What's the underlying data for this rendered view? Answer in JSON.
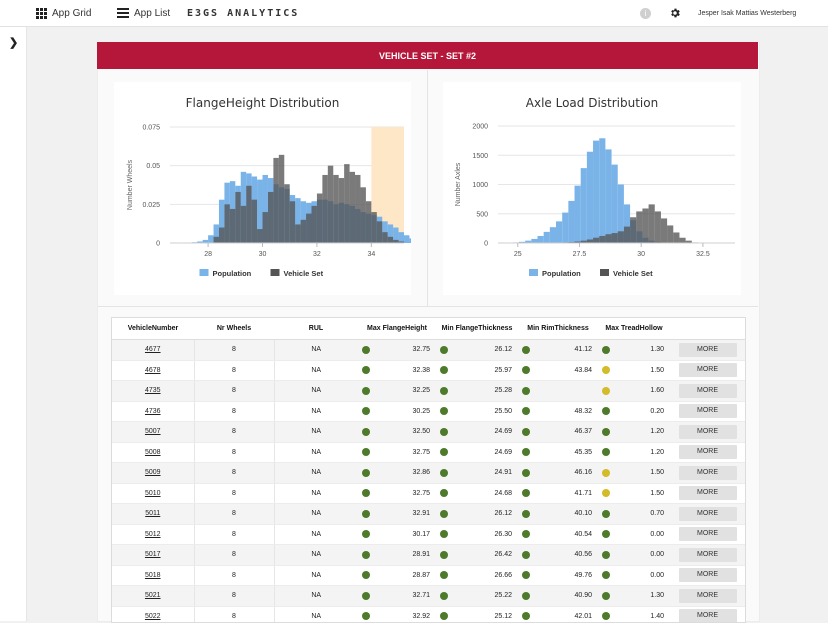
{
  "topbar": {
    "app_grid": "App Grid",
    "app_list": "App List",
    "brand": "E3GS ANALYTICS",
    "user": "Jesper Isak Mattias Westerberg"
  },
  "colors": {
    "header": "#b5173a",
    "population": "#7ab3e8",
    "vehicle_set": "#555555",
    "ok": "#4e7a2b",
    "warn": "#d3bb2a"
  },
  "header": {
    "title": "VEHICLE SET - SET #2"
  },
  "legend": {
    "population": "Population",
    "vehicle_set": "Vehicle Set"
  },
  "chart_data": [
    {
      "type": "bar",
      "title": "FlangeHeight Distribution",
      "ylabel": "Number Wheels",
      "xlabel": "",
      "xlim": [
        26.6,
        35.2
      ],
      "ylim": [
        0,
        0.075
      ],
      "xticks": [
        28,
        30,
        32,
        34
      ],
      "yticks": [
        0,
        0.025,
        0.05,
        0.075
      ],
      "ytick_labels": [
        "0",
        "0.025",
        "0.05",
        "0.075"
      ],
      "band": [
        34,
        35.2
      ],
      "bin_start": 27.4,
      "bin_width": 0.2,
      "series": [
        {
          "name": "Population",
          "values": [
            0.0005,
            0.001,
            0.002,
            0.005,
            0.012,
            0.028,
            0.039,
            0.04,
            0.037,
            0.046,
            0.045,
            0.043,
            0.041,
            0.044,
            0.042,
            0.038,
            0.036,
            0.035,
            0.031,
            0.029,
            0.027,
            0.026,
            0.027,
            0.028,
            0.028,
            0.027,
            0.025,
            0.026,
            0.025,
            0.024,
            0.022,
            0.02,
            0.019,
            0.018,
            0.017,
            0.014,
            0.012,
            0.01,
            0.007,
            0.005,
            0.003,
            0.002,
            0.001,
            0.0005
          ]
        },
        {
          "name": "Vehicle Set",
          "values": [
            0,
            0,
            0,
            0,
            0.004,
            0.01,
            0.025,
            0.022,
            0.033,
            0.024,
            0.037,
            0.028,
            0.009,
            0.02,
            0.033,
            0.055,
            0.057,
            0.038,
            0.027,
            0.012,
            0.015,
            0.019,
            0.024,
            0.032,
            0.044,
            0.05,
            0.044,
            0.042,
            0.051,
            0.046,
            0.044,
            0.036,
            0.027,
            0.02,
            0.014,
            0.007,
            0.004,
            0.002,
            0.001,
            0,
            0,
            0,
            0,
            0
          ]
        }
      ]
    },
    {
      "type": "bar",
      "title": "Axle Load Distribution",
      "ylabel": "Number Axles",
      "xlabel": "",
      "xlim": [
        24.2,
        33.8
      ],
      "ylim": [
        0,
        2000
      ],
      "xticks": [
        25,
        27.5,
        30,
        32.5
      ],
      "xtick_labels": [
        "25",
        "27.5",
        "30",
        "32.5"
      ],
      "yticks": [
        0,
        500,
        1000,
        1500,
        2000
      ],
      "bin_start": 24.8,
      "bin_width": 0.25,
      "series": [
        {
          "name": "Population",
          "values": [
            10,
            20,
            40,
            70,
            120,
            190,
            270,
            370,
            520,
            720,
            980,
            1280,
            1560,
            1750,
            1790,
            1600,
            1340,
            1000,
            660,
            390,
            200,
            90,
            40,
            20,
            10,
            5,
            0,
            0,
            0,
            0
          ]
        },
        {
          "name": "Vehicle Set",
          "values": [
            0,
            0,
            0,
            0,
            0,
            0,
            0,
            0,
            10,
            15,
            25,
            40,
            60,
            90,
            120,
            150,
            170,
            200,
            280,
            440,
            540,
            590,
            660,
            540,
            420,
            300,
            180,
            90,
            40,
            10
          ]
        }
      ]
    }
  ],
  "table": {
    "columns": [
      "VehicleNumber",
      "Nr Wheels",
      "RUL",
      "Max FlangeHeight",
      "Min FlangeThickness",
      "Min RimThickness",
      "Max TreadHollow",
      ""
    ],
    "more_label": "MORE",
    "rows": [
      {
        "vn": "4677",
        "wheels": "8",
        "rul": "NA",
        "fh": "32.75",
        "fh_s": "g",
        "ft": "26.12",
        "ft_s": "g",
        "rt": "41.12",
        "rt_s": "g",
        "th": "1.30",
        "th_s": "g"
      },
      {
        "vn": "4678",
        "wheels": "8",
        "rul": "NA",
        "fh": "32.38",
        "fh_s": "g",
        "ft": "25.97",
        "ft_s": "g",
        "rt": "43.84",
        "rt_s": "g",
        "th": "1.50",
        "th_s": "y"
      },
      {
        "vn": "4735",
        "wheels": "8",
        "rul": "NA",
        "fh": "32.25",
        "fh_s": "g",
        "ft": "25.28",
        "ft_s": "g",
        "rt": "",
        "rt_s": "g",
        "th": "1.60",
        "th_s": "y"
      },
      {
        "vn": "4736",
        "wheels": "8",
        "rul": "NA",
        "fh": "30.25",
        "fh_s": "g",
        "ft": "25.50",
        "ft_s": "g",
        "rt": "48.32",
        "rt_s": "g",
        "th": "0.20",
        "th_s": "g"
      },
      {
        "vn": "5007",
        "wheels": "8",
        "rul": "NA",
        "fh": "32.50",
        "fh_s": "g",
        "ft": "24.69",
        "ft_s": "g",
        "rt": "46.37",
        "rt_s": "g",
        "th": "1.20",
        "th_s": "g"
      },
      {
        "vn": "5008",
        "wheels": "8",
        "rul": "NA",
        "fh": "32.75",
        "fh_s": "g",
        "ft": "24.69",
        "ft_s": "g",
        "rt": "45.35",
        "rt_s": "g",
        "th": "1.20",
        "th_s": "g"
      },
      {
        "vn": "5009",
        "wheels": "8",
        "rul": "NA",
        "fh": "32.86",
        "fh_s": "g",
        "ft": "24.91",
        "ft_s": "g",
        "rt": "46.16",
        "rt_s": "g",
        "th": "1.50",
        "th_s": "y"
      },
      {
        "vn": "5010",
        "wheels": "8",
        "rul": "NA",
        "fh": "32.75",
        "fh_s": "g",
        "ft": "24.68",
        "ft_s": "g",
        "rt": "41.71",
        "rt_s": "g",
        "th": "1.50",
        "th_s": "y"
      },
      {
        "vn": "5011",
        "wheels": "8",
        "rul": "NA",
        "fh": "32.91",
        "fh_s": "g",
        "ft": "26.12",
        "ft_s": "g",
        "rt": "40.10",
        "rt_s": "g",
        "th": "0.70",
        "th_s": "g"
      },
      {
        "vn": "5012",
        "wheels": "8",
        "rul": "NA",
        "fh": "30.17",
        "fh_s": "g",
        "ft": "26.30",
        "ft_s": "g",
        "rt": "40.54",
        "rt_s": "g",
        "th": "0.00",
        "th_s": "g"
      },
      {
        "vn": "5017",
        "wheels": "8",
        "rul": "NA",
        "fh": "28.91",
        "fh_s": "g",
        "ft": "26.42",
        "ft_s": "g",
        "rt": "40.56",
        "rt_s": "g",
        "th": "0.00",
        "th_s": "g"
      },
      {
        "vn": "5018",
        "wheels": "8",
        "rul": "NA",
        "fh": "28.87",
        "fh_s": "g",
        "ft": "26.66",
        "ft_s": "g",
        "rt": "49.76",
        "rt_s": "g",
        "th": "0.00",
        "th_s": "g"
      },
      {
        "vn": "5021",
        "wheels": "8",
        "rul": "NA",
        "fh": "32.71",
        "fh_s": "g",
        "ft": "25.22",
        "ft_s": "g",
        "rt": "40.90",
        "rt_s": "g",
        "th": "1.30",
        "th_s": "g"
      },
      {
        "vn": "5022",
        "wheels": "8",
        "rul": "NA",
        "fh": "32.92",
        "fh_s": "g",
        "ft": "25.12",
        "ft_s": "g",
        "rt": "42.01",
        "rt_s": "g",
        "th": "1.40",
        "th_s": "g"
      }
    ]
  }
}
